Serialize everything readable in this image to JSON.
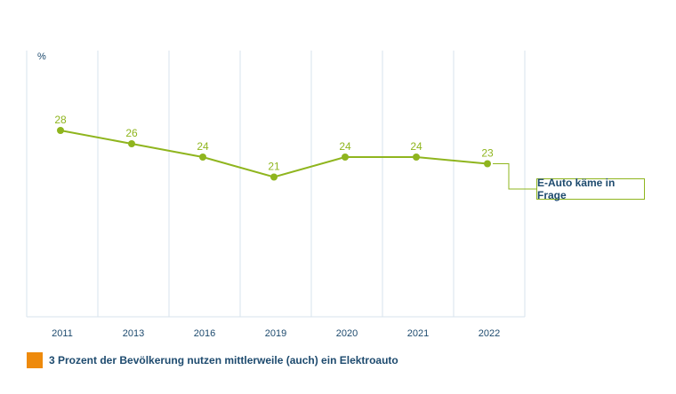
{
  "chart_data": {
    "type": "line",
    "unit_label": "%",
    "categories": [
      "2011",
      "2013",
      "2016",
      "2019",
      "2020",
      "2021",
      "2022"
    ],
    "series": [
      {
        "name": "E-Auto käme in Frage",
        "values": [
          28,
          26,
          24,
          21,
          24,
          24,
          23
        ]
      }
    ],
    "ylim": [
      0,
      40
    ],
    "grid": "vertical",
    "colors": {
      "series": "#8fb51e",
      "grid": "#d7e3ec",
      "text": "#1d4a6e"
    }
  },
  "footnote": {
    "text": "3 Prozent der Bevölkerung nutzen mittlerweile (auch) ein Elektroauto",
    "color": "#ee8a0c"
  }
}
